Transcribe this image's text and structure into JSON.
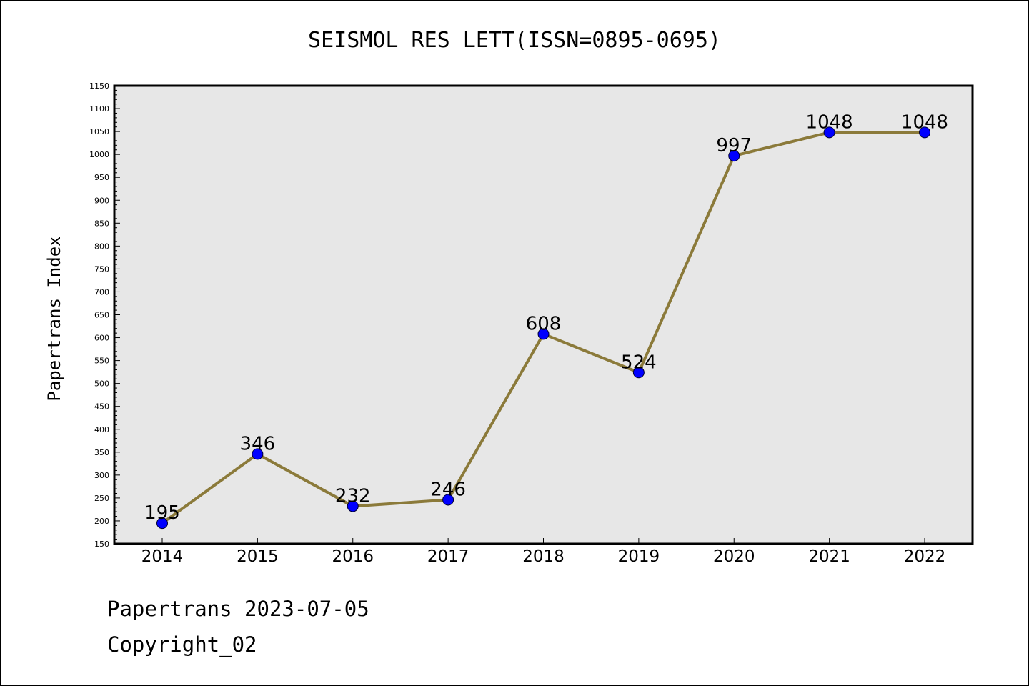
{
  "chart_data": {
    "type": "line",
    "title": "SEISMOL RES LETT(ISSN=0895-0695)",
    "xlabel": "",
    "ylabel": "Papertrans Index",
    "ylim": [
      150,
      1150
    ],
    "y_tick_step": 50,
    "categories": [
      "2014",
      "2015",
      "2016",
      "2017",
      "2018",
      "2019",
      "2020",
      "2021",
      "2022"
    ],
    "series": [
      {
        "values": [
          195,
          346,
          232,
          246,
          608,
          524,
          997,
          1048,
          1048
        ]
      }
    ],
    "data_labels": [
      "195",
      "346",
      "232",
      "246",
      "608",
      "524",
      "997",
      "1048",
      "1048"
    ],
    "grid": false,
    "legend": "none",
    "colors": {
      "line": "#8b7a3a",
      "marker": "#0000ff",
      "plot_background": "#e7e7e7"
    }
  },
  "footer": {
    "line1": "Papertrans 2023-07-05",
    "line2": "Copyright_02"
  }
}
